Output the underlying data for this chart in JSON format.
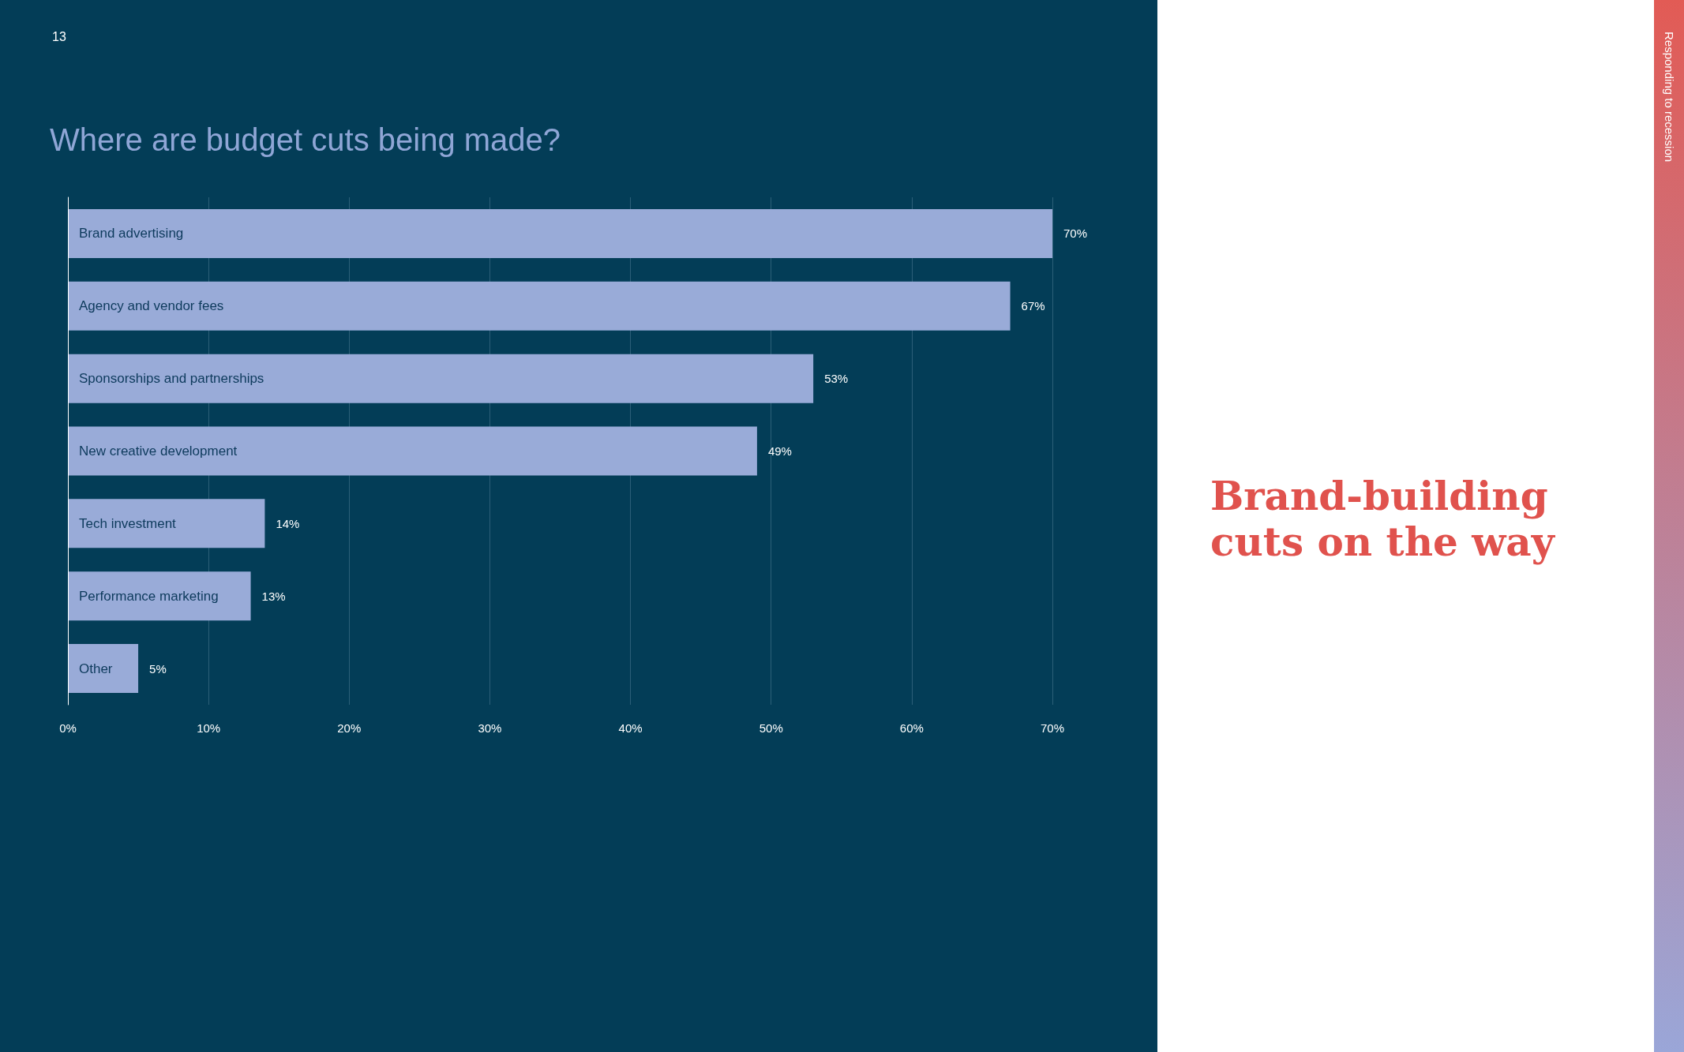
{
  "chart_data": {
    "type": "bar",
    "orientation": "horizontal",
    "title": "Where are budget cuts being made?",
    "categories": [
      "Brand advertising",
      "Agency and vendor fees",
      "Sponsorships and partnerships",
      "New creative development",
      "Tech investment",
      "Performance marketing",
      "Other"
    ],
    "values": [
      70,
      67,
      53,
      49,
      14,
      13,
      5
    ],
    "value_labels": [
      "70%",
      "67%",
      "53%",
      "49%",
      "14%",
      "13%",
      "5%"
    ],
    "color": "#99abd8",
    "xlim": [
      0,
      70
    ],
    "xticks": [
      {
        "value": 0,
        "label": "0%"
      },
      {
        "value": 10,
        "label": "10%"
      },
      {
        "value": 20,
        "label": "20%"
      },
      {
        "value": 30,
        "label": "30%"
      },
      {
        "value": 40,
        "label": "40%"
      },
      {
        "value": 50,
        "label": "50%"
      },
      {
        "value": 60,
        "label": "60%"
      },
      {
        "value": 70,
        "label": "70%"
      }
    ],
    "grid": "x",
    "annotations": [
      "13",
      "Brand-building cuts on the way",
      "Responding to recession"
    ]
  }
}
